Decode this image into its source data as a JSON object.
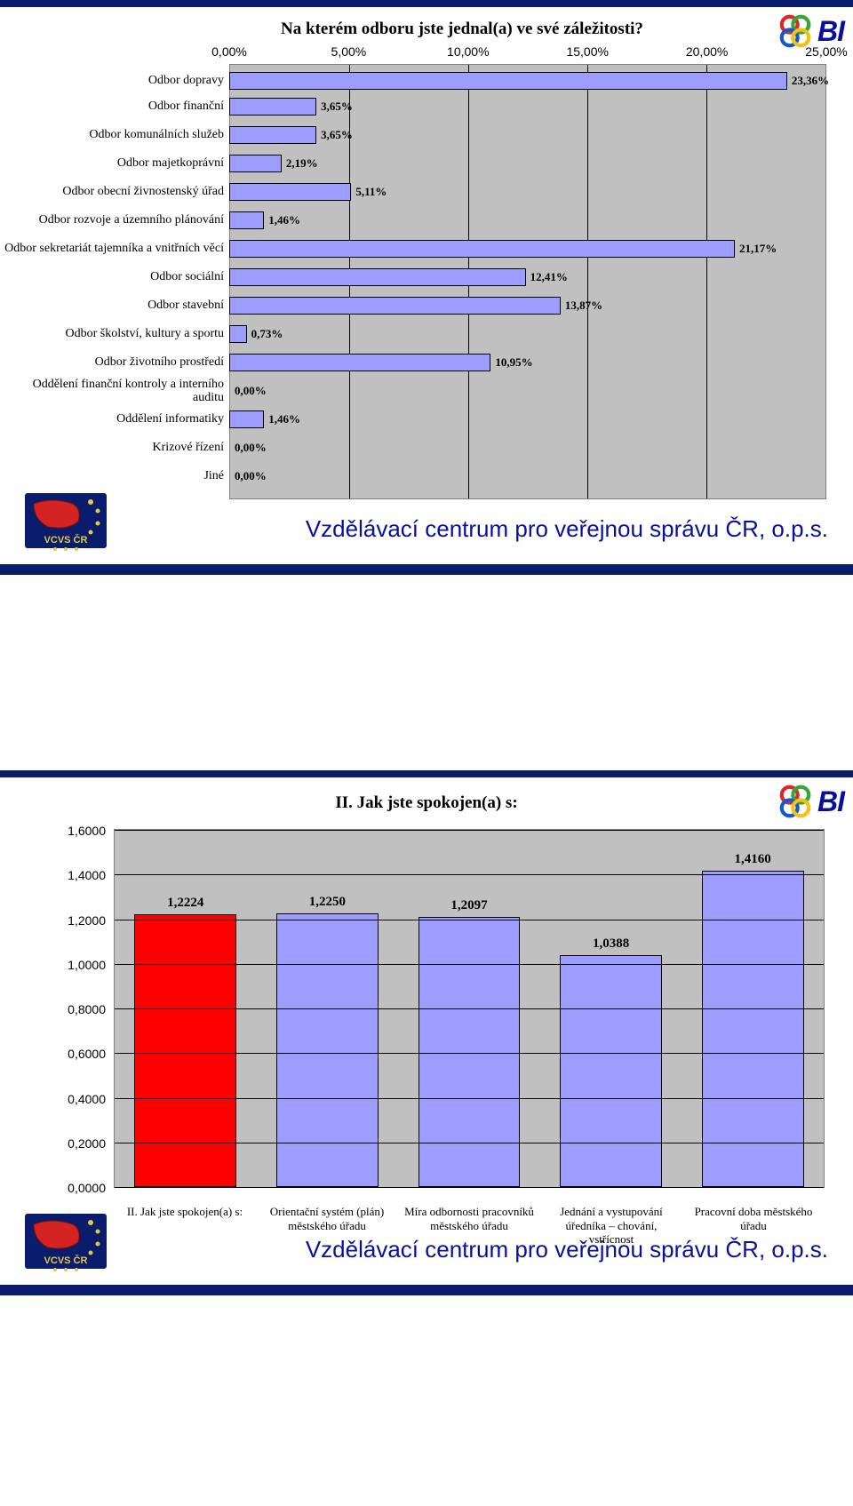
{
  "footer": "Vzdělávací centrum pro veřejnou správu ČR, o.p.s.",
  "logo_text": "BI",
  "ring_colors": [
    "#d9292a",
    "#3aa536",
    "#1459c8",
    "#f2c21a"
  ],
  "vcvs": {
    "bg": "#0a1c6c",
    "text": "VCVS ČR",
    "text_color": "#e6c64b",
    "map": "#d32323"
  },
  "chart1": {
    "type": "bar-horizontal",
    "title": "Na kterém odboru jste jednal(a) ve své záležitosti?",
    "title_fontsize": 19,
    "x_axis": {
      "min": 0,
      "max": 25,
      "step": 5,
      "fmt_suffix": ",00%"
    },
    "plot_bg": "#c0c0c0",
    "grid_color": "#000000",
    "bar_fill_default": "#9d9dff",
    "bar_border": "#000000",
    "value_fontweight": 700,
    "rows": [
      {
        "label": "Odbor dopravy",
        "value": 23.36,
        "text": "23,36%"
      },
      {
        "label": "Odbor finanční",
        "value": 3.65,
        "text": "3,65%"
      },
      {
        "label": "Odbor komunálních služeb",
        "value": 3.65,
        "text": "3,65%"
      },
      {
        "label": "Odbor majetkoprávní",
        "value": 2.19,
        "text": "2,19%"
      },
      {
        "label": "Odbor obecní živnostenský úřad",
        "value": 5.11,
        "text": "5,11%"
      },
      {
        "label": "Odbor rozvoje a územního plánování",
        "value": 1.46,
        "text": "1,46%"
      },
      {
        "label": "Odbor sekretariát tajemníka a vnitřních věcí",
        "value": 21.17,
        "text": "21,17%"
      },
      {
        "label": "Odbor sociální",
        "value": 12.41,
        "text": "12,41%"
      },
      {
        "label": "Odbor stavební",
        "value": 13.87,
        "text": "13,87%"
      },
      {
        "label": "Odbor školství, kultury a sportu",
        "value": 0.73,
        "text": "0,73%"
      },
      {
        "label": "Odbor životního prostředí",
        "value": 10.95,
        "text": "10,95%"
      },
      {
        "label": "Oddělení finanční kontroly a interního auditu",
        "value": 0.0,
        "text": "0,00%"
      },
      {
        "label": "Oddělení informatiky",
        "value": 1.46,
        "text": "1,46%"
      },
      {
        "label": "Krizové řízení",
        "value": 0.0,
        "text": "0,00%"
      },
      {
        "label": "Jiné",
        "value": 0.0,
        "text": "0,00%"
      }
    ]
  },
  "chart2": {
    "type": "bar-vertical",
    "title": "II. Jak jste spokojen(a) s:",
    "title_fontsize": 19,
    "y_axis": {
      "min": 0,
      "max": 1.6,
      "step": 0.2,
      "fmt_decimals": 4
    },
    "plot_bg": "#c0c0c0",
    "grid_color": "#000000",
    "bar_border": "#000000",
    "bar_fill_default": "#9d9dff",
    "bar_fill_highlight": "#ff0000",
    "value_fontweight": 700,
    "bars": [
      {
        "label": "II. Jak jste spokojen(a) s:",
        "value": 1.2224,
        "text": "1,2224",
        "highlight": true
      },
      {
        "label": "Orientační systém (plán) městského úřadu",
        "value": 1.225,
        "text": "1,2250",
        "highlight": false
      },
      {
        "label": "Míra odbornosti pracovníků městského úřadu",
        "value": 1.2097,
        "text": "1,2097",
        "highlight": false
      },
      {
        "label": "Jednání a vystupování úředníka – chování, vstřícnost",
        "value": 1.0388,
        "text": "1,0388",
        "highlight": false
      },
      {
        "label": "Pracovní doba městského úřadu",
        "value": 1.416,
        "text": "1,4160",
        "highlight": false
      }
    ]
  }
}
